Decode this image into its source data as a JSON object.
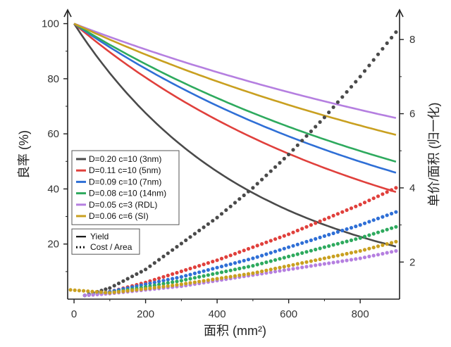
{
  "chart_data": {
    "type": "line",
    "xlabel": "面积 (mm²)",
    "ylabel_left": "良率 (%)",
    "ylabel_right": "单价/面积 (归一化)",
    "xlim": [
      -10,
      910
    ],
    "ylim_left": [
      0,
      105
    ],
    "ylim_right": [
      1.0,
      8.8
    ],
    "x_ticks": [
      0,
      200,
      400,
      600,
      800
    ],
    "y_left_ticks": [
      20,
      40,
      60,
      80,
      100
    ],
    "y_right_ticks": [
      2,
      4,
      6,
      8
    ],
    "grid": false,
    "legend_position": "left-middle",
    "yield_series": [
      {
        "name": "D=0.20 c=10 (3nm)",
        "color": "#4a4a4a",
        "D": 0.2,
        "c": 10
      },
      {
        "name": "D=0.11 c=10 (5nm)",
        "color": "#e0403c",
        "D": 0.11,
        "c": 10
      },
      {
        "name": "D=0.09 c=10 (7nm)",
        "color": "#2f6fd6",
        "D": 0.09,
        "c": 10
      },
      {
        "name": "D=0.08 c=10 (14nm)",
        "color": "#2eaa5e",
        "D": 0.08,
        "c": 10
      },
      {
        "name": "D=0.05 c=3   (RDL)",
        "color": "#b57fe0",
        "D": 0.05,
        "c": 3
      },
      {
        "name": "D=0.06 c=6   (SI)",
        "color": "#c9a020",
        "D": 0.06,
        "c": 6
      }
    ],
    "cost_series": [
      {
        "color": "#4a4a4a",
        "x": [
          30,
          100,
          200,
          300,
          400,
          500,
          600,
          700,
          800,
          900
        ],
        "y": [
          1.1,
          1.3,
          1.8,
          2.5,
          3.2,
          4.0,
          4.9,
          5.9,
          7.0,
          8.2
        ]
      },
      {
        "color": "#e0403c",
        "x": [
          30,
          100,
          200,
          300,
          400,
          500,
          600,
          700,
          800,
          900
        ],
        "y": [
          1.1,
          1.2,
          1.45,
          1.75,
          2.05,
          2.4,
          2.75,
          3.15,
          3.55,
          4.0
        ]
      },
      {
        "color": "#2f6fd6",
        "x": [
          30,
          100,
          200,
          300,
          400,
          500,
          600,
          700,
          800,
          900
        ],
        "y": [
          1.1,
          1.2,
          1.4,
          1.6,
          1.85,
          2.1,
          2.4,
          2.7,
          3.0,
          3.35
        ]
      },
      {
        "color": "#2eaa5e",
        "x": [
          30,
          100,
          200,
          300,
          400,
          500,
          600,
          700,
          800,
          900
        ],
        "y": [
          1.1,
          1.17,
          1.33,
          1.5,
          1.7,
          1.9,
          2.15,
          2.4,
          2.65,
          2.95
        ]
      },
      {
        "color": "#b57fe0",
        "x": [
          30,
          100,
          200,
          300,
          400,
          500,
          600,
          700,
          800,
          900
        ],
        "y": [
          1.1,
          1.15,
          1.25,
          1.35,
          1.5,
          1.65,
          1.8,
          1.95,
          2.1,
          2.3
        ]
      },
      {
        "color": "#c9a020",
        "x": [
          -10,
          100,
          200,
          300,
          400,
          500,
          600,
          700,
          800,
          900
        ],
        "y": [
          1.25,
          1.17,
          1.28,
          1.4,
          1.55,
          1.7,
          1.9,
          2.1,
          2.3,
          2.55
        ]
      }
    ],
    "style_legend": [
      {
        "label": "Yield",
        "style": "solid"
      },
      {
        "label": "Cost / Area",
        "style": "dotted"
      }
    ]
  }
}
